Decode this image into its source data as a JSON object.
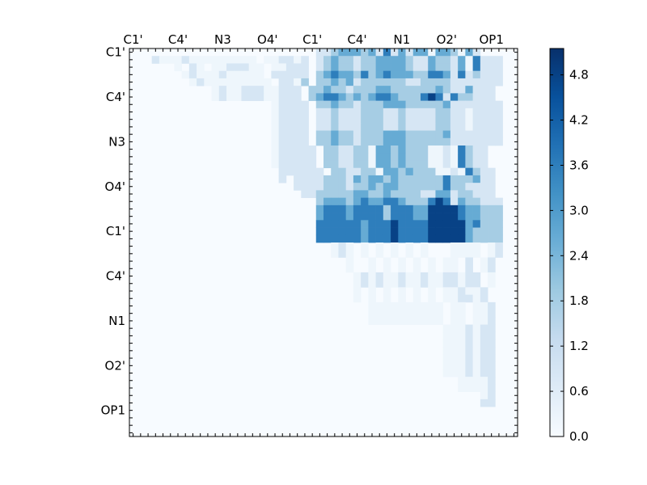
{
  "chart_data": {
    "type": "heatmap",
    "title": "",
    "xlabel": "",
    "ylabel": "",
    "n": 52,
    "x_tick_labels": [
      "C1'",
      "C4'",
      "N3",
      "O4'",
      "C1'",
      "C4'",
      "N1",
      "O2'",
      "OP1"
    ],
    "y_tick_labels": [
      "C1'",
      "C4'",
      "N3",
      "O4'",
      "C1'",
      "C4'",
      "N1",
      "O2'",
      "OP1"
    ],
    "tick_positions": [
      0.5,
      6.5,
      12.5,
      18.5,
      24.5,
      30.5,
      36.5,
      42.5,
      48.5
    ],
    "colorbar": {
      "colormap": "Blues",
      "range": [
        0.0,
        5.15
      ],
      "ticks": [
        0.0,
        0.6,
        1.2,
        1.8,
        2.4,
        3.0,
        3.6,
        4.2,
        4.8
      ],
      "tick_labels": [
        "0.0",
        "0.6",
        "1.2",
        "1.8",
        "2.4",
        "3.0",
        "3.6",
        "4.2",
        "4.8"
      ]
    },
    "rows": [
      "                         1123332314131330332031  ",
      "   10001000000000 001101 1232212233332113221304111",
      "      0 10 0011100 00111 1232212233332113221304111",
      "       01000100000 11111 2343324234333224431412111",
      "        01000000000 1102 2232312222221122221111111",
      "           010011100111 2232212223322222232113111",
      "           010011100111 2344323234432224541422111",
      "                   01111 2232212223332222231111111",
      "                   01111 1121112221121111221101111",
      "                   01111 1121112221121111221101111",
      "                   01111 1121112221121111221101111",
      "                   01111 2232212223332222231111111",
      "                   01111 2232212223332222221111111",
      "                   011111 2211220332322200104211 ",
      "                   011111 2211220332322200104211 ",
      "                   011111 2211220332322200104211 ",
      "                    111111 2211220332322200104211",
      "                    1 111122213233232222224222311",
      "                      111122212232332222224221111",
      "                       11222223322322221133122111",
      "                         2333234334432224541322111",
      "                         3444344442444335555433222",
      "                         3444344442444335555433222",
      "                         4444443444544445555534222",
      "                         4444443444544445555532222",
      "                         4444443444544445555532222",
      "                           010 0 0 0 0 0   0000 01",
      "                           010 0 0 0 0 0   0000 01",
      "                             0  0 0 0 0 0 00 1 01",
      "                             0  0 0 0 0 0 00 1 01",
      "                              01010010010011011 0",
      "                              01010010010011011 0",
      "                              0 0 0 0 0 0 001001",
      "                              0 0 0 0 0 0 001101",
      "                                0000000000 00 001",
      "                                0000000000 00 001",
      "                                0000000000 00 001",
      "                                          0001011",
      "                                          0001011",
      "                                          0001011",
      "                                          0001011",
      "                                          0001011",
      "                                          0001011",
      "                                          0001011",
      "                                            00001",
      "                                            00001",
      "                                               01",
      "                                               11",
      "                                                 ",
      "                                                 ",
      "                                                 ",
      "                                                  "
    ]
  }
}
